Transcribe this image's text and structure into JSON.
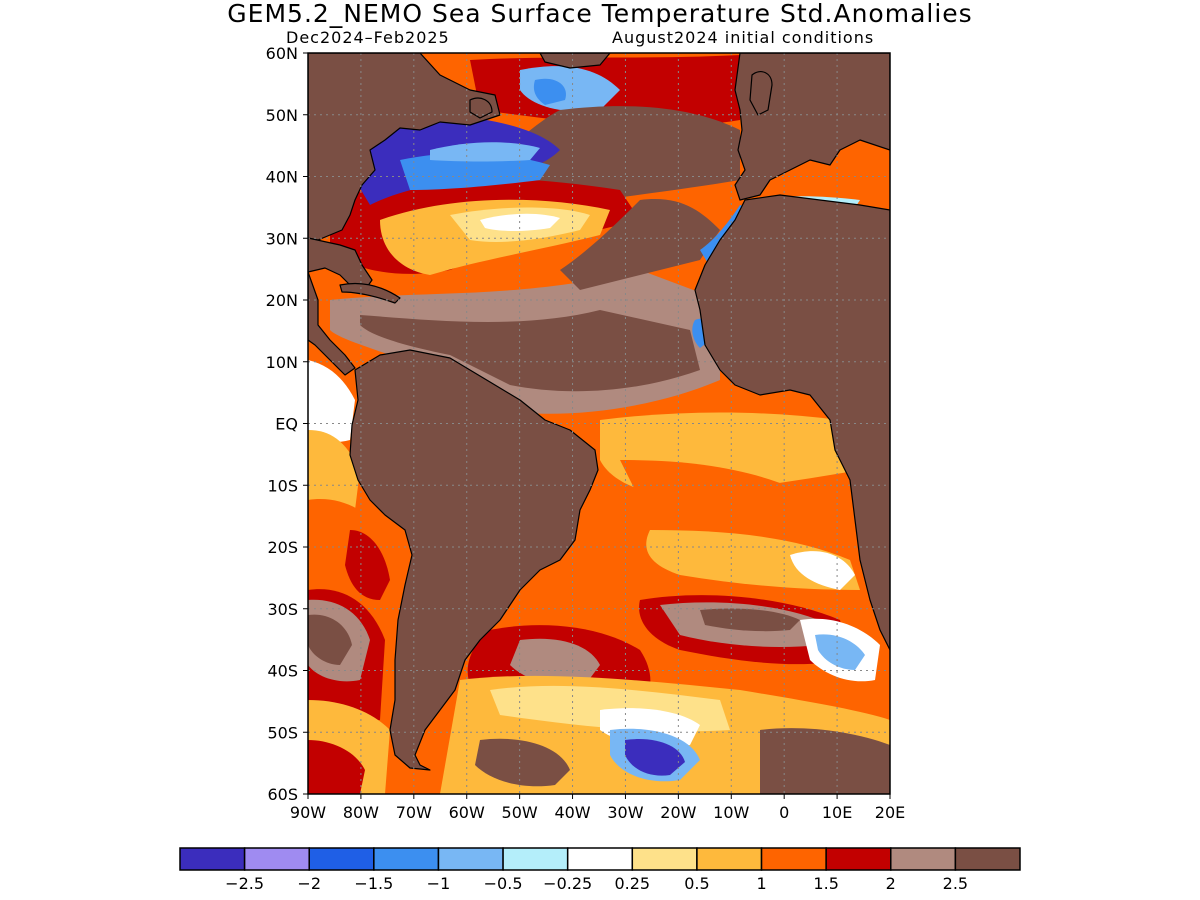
{
  "title": "GEM5.2_NEMO Sea Surface Temperature Std.Anomalies",
  "period": "Dec2024–Feb2025",
  "initial_conditions": "August2024 initial conditions",
  "latitudes": [
    "60N",
    "50N",
    "40N",
    "30N",
    "20N",
    "10N",
    "EQ",
    "10S",
    "20S",
    "30S",
    "40S",
    "50S",
    "60S"
  ],
  "longitudes": [
    "90W",
    "80W",
    "70W",
    "60W",
    "50W",
    "40W",
    "30W",
    "20W",
    "10W",
    "0",
    "10E",
    "20E"
  ],
  "colorbar": {
    "colors": [
      "#3b2dbd",
      "#9f8bf1",
      "#1f5fe6",
      "#3c8ff0",
      "#78b7f4",
      "#b4eefa",
      "#ffffff",
      "#fee18a",
      "#feb93c",
      "#fe6400",
      "#c20000",
      "#b08a7f",
      "#7a4f44"
    ],
    "labels": [
      "−2.5",
      "−2",
      "−1.5",
      "−1",
      "−0.5",
      "−0.25",
      "0.25",
      "0.5",
      "1",
      "1.5",
      "2",
      "2.5"
    ]
  },
  "colors": {
    "land": "#7a4f44",
    "ocean_base": "#fe6400"
  }
}
